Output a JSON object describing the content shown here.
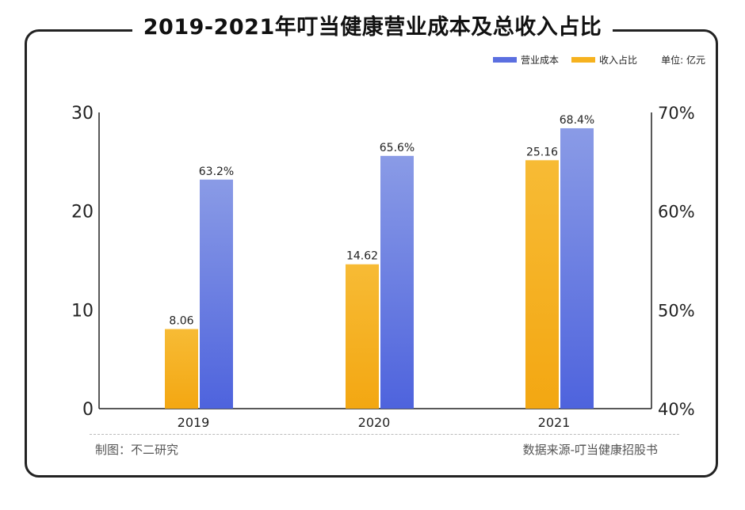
{
  "title": "2019-2021年叮当健康营业成本及总收入占比",
  "unit_label": "单位: 亿元",
  "footer": {
    "left": "制图：不二研究",
    "right": "数据来源-叮当健康招股书"
  },
  "colors": {
    "cost": "#5b6fe0",
    "cost_light": "#8a9be6",
    "ratio": "#f6b21f"
  },
  "chart_data": {
    "type": "bar",
    "categories": [
      "2019",
      "2020",
      "2021"
    ],
    "series": [
      {
        "name": "营业成本",
        "axis": "left",
        "values": [
          8.06,
          14.62,
          25.16
        ],
        "labels": [
          "8.06",
          "14.62",
          "25.16"
        ],
        "color": "#f6b21f"
      },
      {
        "name": "收入占比",
        "axis": "right",
        "values": [
          63.2,
          65.6,
          68.4
        ],
        "labels": [
          "63.2%",
          "65.6%",
          "68.4%"
        ],
        "color": "#5b6fe0"
      }
    ],
    "y_left": {
      "min": 0,
      "max": 30,
      "ticks": [
        "0",
        "10",
        "20",
        "30"
      ]
    },
    "y_right": {
      "min": 40,
      "max": 70,
      "ticks": [
        "40%",
        "50%",
        "60%",
        "70%"
      ]
    },
    "legend": [
      {
        "name": "营业成本",
        "color": "#5b6fe0"
      },
      {
        "name": "收入占比",
        "color": "#f6b21f"
      }
    ],
    "legend_position": "top-right",
    "grid": false
  }
}
